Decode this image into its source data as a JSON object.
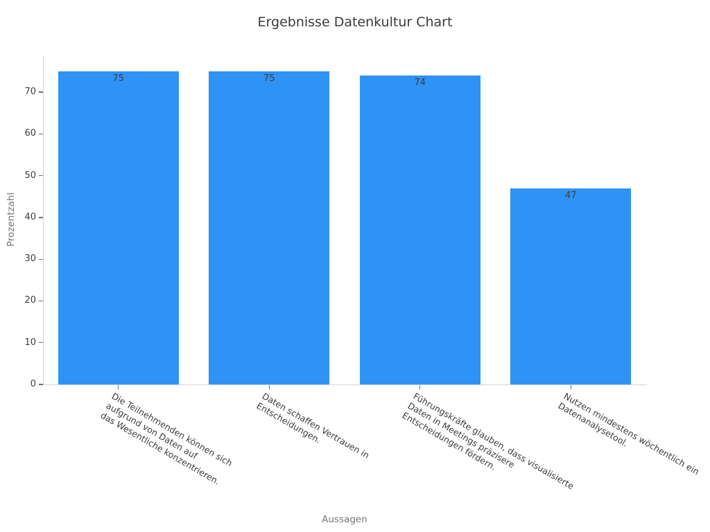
{
  "title": "Ergebnisse Datenkultur Chart",
  "chart_data": {
    "type": "bar",
    "title": "Ergebnisse Datenkultur Chart",
    "xlabel": "Aussagen",
    "ylabel": "Prozentzahl",
    "categories": [
      "Die Teilnehmenden können sich\naufgrund von Daten auf\ndas Wesentliche konzentrieren.",
      "Daten schaffen Vertrauen in\nEntscheidungen.",
      "Führungskräfte glauben, dass visualisierte\nDaten in Meetings präzisere\nEntscheidungen fördern.",
      "Nutzen mindestens wöchentlich ein\nDatenanalysetool."
    ],
    "values": [
      75,
      75,
      74,
      47
    ],
    "bar_labels": [
      "75",
      "75",
      "74",
      "47"
    ],
    "bar_label_position": "inside-top",
    "yticks": [
      0,
      10,
      20,
      30,
      40,
      50,
      60,
      70
    ],
    "ylim": [
      0,
      78.8
    ],
    "x_tick_rotation_deg": -30,
    "grid": false,
    "legend": null,
    "colors": {
      "bar": "#2E93F5",
      "title_text": "#3A3A3A",
      "tick_text": "#3C3C3C",
      "axis_label_text": "#757575",
      "spine": "#D4D4D4",
      "tick_mark": "#6E6E6E",
      "bar_value_text": "#3D3D3D",
      "background": "#FFFFFF"
    }
  }
}
